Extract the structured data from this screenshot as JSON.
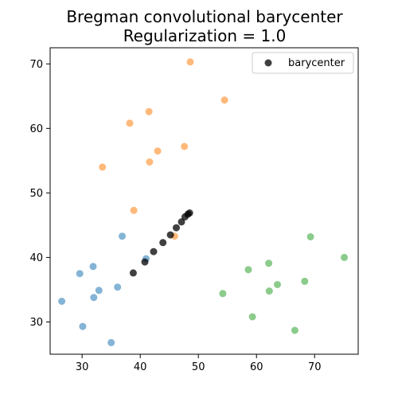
{
  "chart_data": {
    "type": "scatter",
    "title": [
      "Bregman convolutional barycenter",
      "Regularization = 1.0"
    ],
    "xlabel": "",
    "ylabel": "",
    "xlim": [
      24.5,
      77.5
    ],
    "ylim": [
      25,
      72.5
    ],
    "xticks": [
      30,
      40,
      50,
      60,
      70
    ],
    "yticks": [
      30,
      40,
      50,
      60,
      70
    ],
    "grid": false,
    "legend": {
      "placement": "top-right",
      "entries": [
        "barycenter"
      ]
    },
    "series": [
      {
        "color": "#1f77b4",
        "alpha": 0.55,
        "points": [
          [
            26.5,
            33.2
          ],
          [
            29.6,
            37.5
          ],
          [
            30.1,
            29.3
          ],
          [
            31.9,
            38.6
          ],
          [
            32.0,
            33.8
          ],
          [
            32.9,
            34.9
          ],
          [
            35.0,
            26.8
          ],
          [
            36.1,
            35.4
          ],
          [
            36.9,
            43.3
          ],
          [
            41.0,
            39.8
          ]
        ]
      },
      {
        "color": "#ff7f0e",
        "alpha": 0.55,
        "points": [
          [
            33.5,
            54.0
          ],
          [
            38.2,
            60.8
          ],
          [
            38.9,
            47.3
          ],
          [
            41.5,
            62.6
          ],
          [
            41.6,
            54.8
          ],
          [
            43.0,
            56.5
          ],
          [
            45.9,
            43.3
          ],
          [
            47.6,
            57.2
          ],
          [
            48.6,
            70.3
          ],
          [
            54.5,
            64.4
          ]
        ]
      },
      {
        "color": "#2ca02c",
        "alpha": 0.55,
        "points": [
          [
            54.2,
            34.4
          ],
          [
            58.6,
            38.1
          ],
          [
            59.3,
            30.8
          ],
          [
            62.1,
            39.1
          ],
          [
            62.2,
            34.8
          ],
          [
            63.6,
            35.8
          ],
          [
            66.6,
            28.7
          ],
          [
            68.3,
            36.3
          ],
          [
            69.3,
            43.2
          ],
          [
            75.1,
            40.0
          ]
        ]
      },
      {
        "name": "barycenter",
        "color": "#000000",
        "alpha": 0.75,
        "points": [
          [
            38.8,
            37.6
          ],
          [
            40.8,
            39.3
          ],
          [
            42.3,
            40.9
          ],
          [
            43.9,
            42.3
          ],
          [
            45.2,
            43.5
          ],
          [
            46.2,
            44.6
          ],
          [
            47.1,
            45.5
          ],
          [
            47.7,
            46.3
          ],
          [
            48.2,
            46.7
          ],
          [
            48.5,
            46.9
          ]
        ]
      }
    ]
  }
}
